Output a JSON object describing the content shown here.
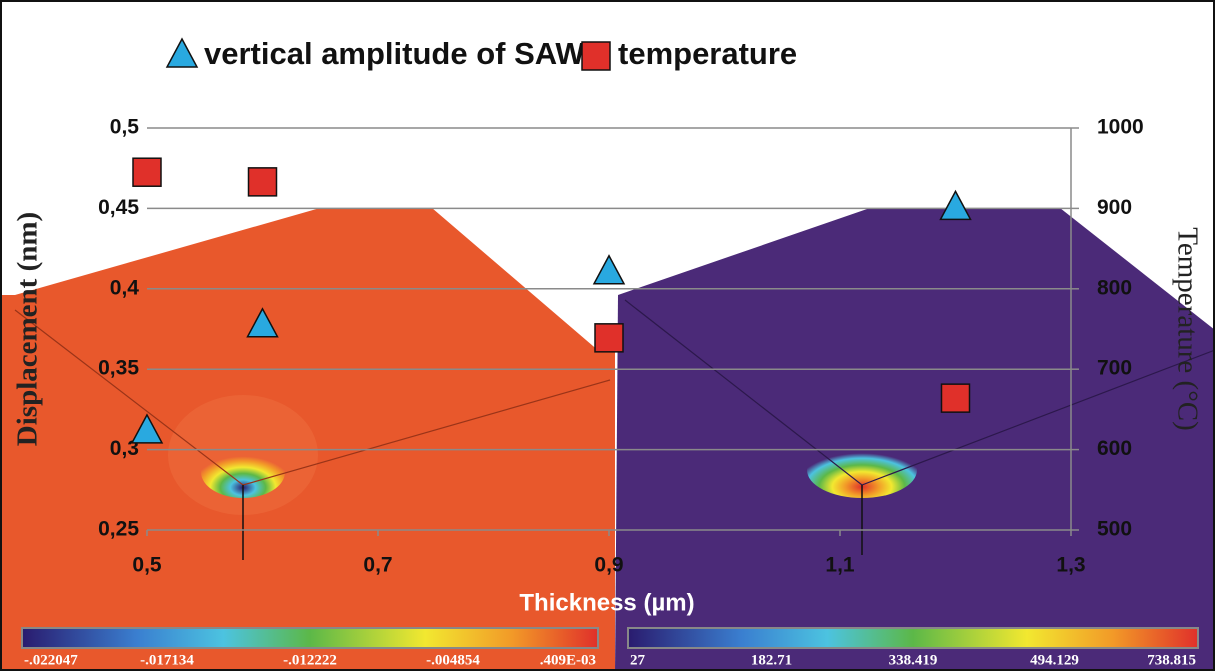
{
  "chart_data": {
    "type": "scatter",
    "xlabel": "Thickness (µm)",
    "ylabel": "Displacement (nm)",
    "y2label": "Temperature (°C)",
    "xlim": [
      0.5,
      1.3
    ],
    "xticks": [
      {
        "value": 0.5,
        "label": "0,5"
      },
      {
        "value": 0.7,
        "label": "0,7"
      },
      {
        "value": 0.9,
        "label": "0,9"
      },
      {
        "value": 1.1,
        "label": "1,1"
      },
      {
        "value": 1.3,
        "label": "1,3"
      }
    ],
    "ylim": [
      0.25,
      0.5
    ],
    "yticks": [
      {
        "value": 0.25,
        "label": "0,25"
      },
      {
        "value": 0.3,
        "label": "0,3"
      },
      {
        "value": 0.35,
        "label": "0,35"
      },
      {
        "value": 0.4,
        "label": "0,4"
      },
      {
        "value": 0.45,
        "label": "0,45"
      },
      {
        "value": 0.5,
        "label": "0,5"
      }
    ],
    "y2lim": [
      500,
      1000
    ],
    "y2ticks": [
      500,
      600,
      700,
      800,
      900,
      1000
    ],
    "grid": true,
    "legend": "top",
    "series": [
      {
        "name": "vertical amplitude of SAW",
        "color": "#29a9e0",
        "marker": "triangle",
        "x": [
          0.5,
          0.6,
          0.9,
          1.2
        ],
        "values": [
          0.311,
          0.377,
          0.41,
          0.45
        ]
      },
      {
        "name": "temperature",
        "color": "#e0302a",
        "marker": "square",
        "axis": "y2",
        "x": [
          0.5,
          0.6,
          0.9,
          1.2
        ],
        "values": [
          945,
          933,
          739,
          664
        ]
      }
    ]
  },
  "colorbars": [
    {
      "labels": [
        "-.022047",
        "-.017134",
        "-.012222",
        "-.004854",
        ".409E-03"
      ]
    },
    {
      "labels": [
        "27",
        "182.71",
        "338.419",
        "494.129",
        "738.815"
      ]
    }
  ]
}
